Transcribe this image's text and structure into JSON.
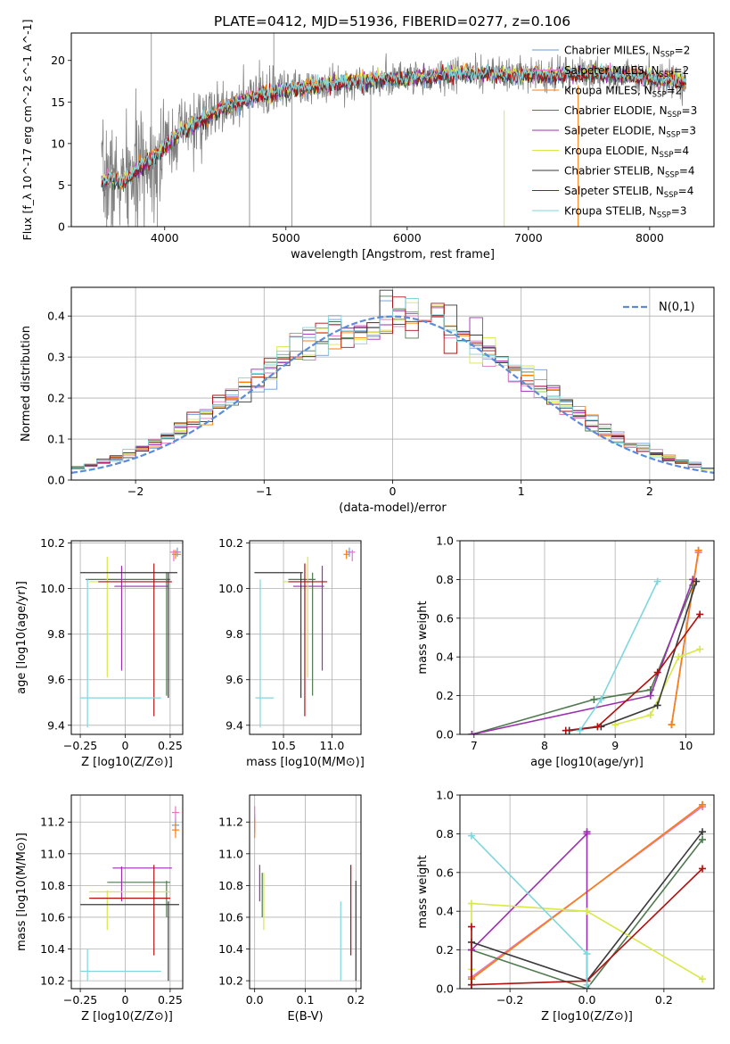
{
  "figure_title": "PLATE=0412, MJD=51936, FIBERID=0277, z=0.106",
  "colors": {
    "Chabrier MILES": "#6a9ad8",
    "Salpeter MILES": "#e377c2",
    "Kroupa MILES": "#ff7f0e",
    "Chabrier ELODIE": "#4f7a4f",
    "Salpeter ELODIE": "#9b2fb0",
    "Kroupa ELODIE": "#d8e84a",
    "Chabrier STELIB": "#3a3a3a",
    "Salpeter STELIB": "#b01010",
    "Kroupa STELIB": "#7fd6dc",
    "data": "#808080",
    "normal": "#5b8bd9"
  },
  "chart_data": [
    {
      "id": "spectrum",
      "type": "line",
      "title": "PLATE=0412, MJD=51936, FIBERID=0277, z=0.106",
      "xlabel": "wavelength [Angstrom, rest frame]",
      "ylabel": "Flux [f_λ 10^-17 erg cm^-2 s^-1 A^-1]",
      "xlim": [
        3230,
        8530
      ],
      "ylim": [
        0,
        23.3
      ],
      "xticks": [
        4000,
        5000,
        6000,
        7000,
        8000
      ],
      "yticks": [
        0,
        5,
        10,
        15,
        20
      ],
      "grid": false,
      "legend": "right",
      "continuum": {
        "x": [
          3480,
          3550,
          3650,
          3750,
          3850,
          3950,
          4050,
          4150,
          4300,
          4450,
          4600,
          4800,
          5000,
          5200,
          5400,
          5600,
          5800,
          6000,
          6200,
          6400,
          6600,
          6800,
          7000,
          7200,
          7400,
          7600,
          7800,
          8000,
          8200,
          8300
        ],
        "y": [
          5.5,
          5.8,
          5.2,
          6.5,
          7.8,
          8.8,
          10.5,
          11.5,
          12.8,
          14.0,
          15.0,
          15.8,
          16.4,
          16.8,
          17.2,
          17.5,
          17.7,
          17.9,
          18.1,
          18.4,
          18.4,
          18.2,
          18.3,
          18.2,
          18.4,
          18.4,
          18.2,
          17.9,
          17.6,
          17.3
        ]
      },
      "series": [
        {
          "name": "Chabrier MILES",
          "nssp": "2"
        },
        {
          "name": "Salpeter MILES",
          "nssp": "2"
        },
        {
          "name": "Kroupa MILES",
          "nssp": "2"
        },
        {
          "name": "Chabrier ELODIE",
          "nssp": "3"
        },
        {
          "name": "Salpeter ELODIE",
          "nssp": "3"
        },
        {
          "name": "Kroupa ELODIE",
          "nssp": "4"
        },
        {
          "name": "Chabrier STELIB",
          "nssp": "4"
        },
        {
          "name": "Salpeter STELIB",
          "nssp": "4"
        },
        {
          "name": "Kroupa STELIB",
          "nssp": "3"
        }
      ]
    },
    {
      "id": "residuals",
      "type": "line",
      "xlabel": "(data-model)/error",
      "ylabel": "Normed distribution",
      "xlim": [
        -2.5,
        2.5
      ],
      "ylim": [
        0,
        0.47
      ],
      "xticks": [
        -2,
        -1,
        0,
        1,
        2
      ],
      "yticks": [
        0.0,
        0.1,
        0.2,
        0.3,
        0.4
      ],
      "grid": true,
      "legend": "top-right",
      "legend_label": "N(0,1)",
      "series_hist": "one normalized histogram per model, same colors as spectrum"
    },
    {
      "id": "age_vs_Z",
      "type": "scatter",
      "xlabel": "Z [log10(Z/Z⊙)]",
      "ylabel": "age [log10(age/yr)]",
      "xlim": [
        -0.3,
        0.32
      ],
      "ylim": [
        9.36,
        10.21
      ],
      "xticks": [
        -0.25,
        0.0,
        0.25
      ],
      "yticks": [
        9.4,
        9.6,
        9.8,
        10.0,
        10.2
      ],
      "grid": true,
      "points": [
        {
          "name": "Chabrier MILES",
          "x": 0.29,
          "y": 10.16,
          "xlo": 0.27,
          "xhi": 0.31,
          "ylo": 10.14,
          "yhi": 10.18
        },
        {
          "name": "Salpeter MILES",
          "x": 0.27,
          "y": 10.16,
          "xlo": 0.25,
          "xhi": 0.3,
          "ylo": 10.12,
          "yhi": 10.17
        },
        {
          "name": "Kroupa MILES",
          "x": 0.28,
          "y": 10.15,
          "xlo": 0.26,
          "xhi": 0.31,
          "ylo": 10.13,
          "yhi": 10.17
        },
        {
          "name": "Chabrier ELODIE",
          "x": 0.23,
          "y": 10.04,
          "xlo": -0.22,
          "xhi": 0.25,
          "ylo": 9.53,
          "yhi": 10.07
        },
        {
          "name": "Salpeter ELODIE",
          "x": -0.02,
          "y": 10.01,
          "xlo": -0.06,
          "xhi": 0.24,
          "ylo": 9.64,
          "yhi": 10.1
        },
        {
          "name": "Kroupa ELODIE",
          "x": -0.1,
          "y": 10.03,
          "xlo": -0.2,
          "xhi": 0.24,
          "ylo": 9.61,
          "yhi": 10.14
        },
        {
          "name": "Chabrier STELIB",
          "x": 0.24,
          "y": 10.07,
          "xlo": -0.25,
          "xhi": 0.29,
          "ylo": 9.52,
          "yhi": 10.07
        },
        {
          "name": "Salpeter STELIB",
          "x": 0.16,
          "y": 10.03,
          "xlo": -0.15,
          "xhi": 0.26,
          "ylo": 9.44,
          "yhi": 10.11
        },
        {
          "name": "Kroupa STELIB",
          "x": -0.21,
          "y": 9.52,
          "xlo": -0.25,
          "xhi": 0.2,
          "ylo": 9.39,
          "yhi": 10.04
        }
      ]
    },
    {
      "id": "age_vs_mass",
      "type": "scatter",
      "xlabel": "mass [log10(M/M⊙)]",
      "ylabel": "",
      "xlim": [
        10.15,
        11.3
      ],
      "ylim": [
        9.36,
        10.21
      ],
      "xticks": [
        10.5,
        11.0
      ],
      "yticks": [
        9.4,
        9.6,
        9.8,
        10.0,
        10.2
      ],
      "grid": true,
      "points": [
        {
          "name": "Chabrier MILES",
          "x": 11.18,
          "y": 10.16,
          "xlo": 11.15,
          "xhi": 11.2,
          "ylo": 10.14,
          "yhi": 10.18
        },
        {
          "name": "Salpeter MILES",
          "x": 11.21,
          "y": 10.16,
          "xlo": 11.18,
          "xhi": 11.24,
          "ylo": 10.12,
          "yhi": 10.17
        },
        {
          "name": "Kroupa MILES",
          "x": 11.15,
          "y": 10.15,
          "xlo": 11.12,
          "xhi": 11.18,
          "ylo": 10.13,
          "yhi": 10.17
        },
        {
          "name": "Chabrier ELODIE",
          "x": 10.8,
          "y": 10.04,
          "xlo": 10.55,
          "xhi": 10.83,
          "ylo": 9.53,
          "yhi": 10.07
        },
        {
          "name": "Salpeter ELODIE",
          "x": 10.9,
          "y": 10.01,
          "xlo": 10.6,
          "xhi": 10.92,
          "ylo": 9.64,
          "yhi": 10.1
        },
        {
          "name": "Kroupa ELODIE",
          "x": 10.75,
          "y": 10.03,
          "xlo": 10.5,
          "xhi": 10.77,
          "ylo": 9.61,
          "yhi": 10.14
        },
        {
          "name": "Chabrier STELIB",
          "x": 10.68,
          "y": 10.07,
          "xlo": 10.2,
          "xhi": 10.7,
          "ylo": 9.52,
          "yhi": 10.07
        },
        {
          "name": "Salpeter STELIB",
          "x": 10.72,
          "y": 10.03,
          "xlo": 10.55,
          "xhi": 10.95,
          "ylo": 9.44,
          "yhi": 10.11
        },
        {
          "name": "Kroupa STELIB",
          "x": 10.26,
          "y": 9.52,
          "xlo": 10.21,
          "xhi": 10.4,
          "ylo": 9.39,
          "yhi": 10.04
        }
      ]
    },
    {
      "id": "massweight_vs_age",
      "type": "line",
      "xlabel": "age [log10(age/yr)]",
      "ylabel": "mass weight",
      "xlim": [
        6.8,
        10.4
      ],
      "ylim": [
        0,
        1.0
      ],
      "xticks": [
        7,
        8,
        9,
        10
      ],
      "yticks": [
        0.0,
        0.2,
        0.4,
        0.6,
        0.8,
        1.0
      ],
      "grid": true,
      "series": [
        {
          "name": "Chabrier MILES",
          "x": [
            9.8,
            10.18
          ],
          "y": [
            0.05,
            0.95
          ]
        },
        {
          "name": "Salpeter MILES",
          "x": [
            9.8,
            10.18
          ],
          "y": [
            0.05,
            0.94
          ]
        },
        {
          "name": "Kroupa MILES",
          "x": [
            9.8,
            10.18
          ],
          "y": [
            0.05,
            0.95
          ]
        },
        {
          "name": "Chabrier ELODIE",
          "x": [
            6.97,
            8.7,
            9.5,
            10.1
          ],
          "y": [
            0.0,
            0.18,
            0.23,
            0.77
          ]
        },
        {
          "name": "Salpeter ELODIE",
          "x": [
            6.97,
            9.5,
            10.1
          ],
          "y": [
            0.0,
            0.2,
            0.8
          ]
        },
        {
          "name": "Kroupa ELODIE",
          "x": [
            9.0,
            9.5,
            9.9,
            10.2
          ],
          "y": [
            0.05,
            0.1,
            0.4,
            0.44
          ]
        },
        {
          "name": "Chabrier STELIB",
          "x": [
            8.35,
            8.8,
            9.6,
            10.15
          ],
          "y": [
            0.02,
            0.04,
            0.15,
            0.79
          ]
        },
        {
          "name": "Salpeter STELIB",
          "x": [
            8.3,
            8.75,
            9.6,
            10.2
          ],
          "y": [
            0.02,
            0.04,
            0.32,
            0.62
          ]
        },
        {
          "name": "Kroupa STELIB",
          "x": [
            8.5,
            8.8,
            9.6
          ],
          "y": [
            0.02,
            0.18,
            0.79
          ]
        }
      ]
    },
    {
      "id": "mass_vs_Z",
      "type": "scatter",
      "xlabel": "Z [log10(Z/Z⊙)]",
      "ylabel": "mass [log10(M/M⊙)]",
      "xlim": [
        -0.3,
        0.32
      ],
      "ylim": [
        10.15,
        11.37
      ],
      "xticks": [
        -0.25,
        0.0,
        0.25
      ],
      "yticks": [
        10.2,
        10.4,
        10.6,
        10.8,
        11.0,
        11.2
      ],
      "grid": true,
      "points": [
        {
          "name": "Chabrier MILES",
          "x": 0.28,
          "y": 11.18,
          "xlo": 0.26,
          "xhi": 0.3,
          "ylo": 11.13,
          "yhi": 11.22
        },
        {
          "name": "Salpeter MILES",
          "x": 0.28,
          "y": 11.26,
          "xlo": 0.26,
          "xhi": 0.3,
          "ylo": 11.21,
          "yhi": 11.3
        },
        {
          "name": "Kroupa MILES",
          "x": 0.28,
          "y": 11.15,
          "xlo": 0.26,
          "xhi": 0.3,
          "ylo": 11.1,
          "yhi": 11.2
        },
        {
          "name": "Chabrier ELODIE",
          "x": 0.23,
          "y": 10.82,
          "xlo": -0.1,
          "xhi": 0.25,
          "ylo": 10.6,
          "yhi": 10.83
        },
        {
          "name": "Salpeter ELODIE",
          "x": -0.02,
          "y": 10.91,
          "xlo": -0.07,
          "xhi": 0.26,
          "ylo": 10.7,
          "yhi": 10.92
        },
        {
          "name": "Kroupa ELODIE",
          "x": -0.1,
          "y": 10.76,
          "xlo": -0.2,
          "xhi": 0.25,
          "ylo": 10.52,
          "yhi": 10.77
        },
        {
          "name": "Chabrier STELIB",
          "x": 0.24,
          "y": 10.68,
          "xlo": -0.25,
          "xhi": 0.3,
          "ylo": 10.2,
          "yhi": 10.7
        },
        {
          "name": "Salpeter STELIB",
          "x": 0.16,
          "y": 10.72,
          "xlo": -0.2,
          "xhi": 0.25,
          "ylo": 10.36,
          "yhi": 10.93
        },
        {
          "name": "Kroupa STELIB",
          "x": -0.21,
          "y": 10.26,
          "xlo": -0.25,
          "xhi": 0.2,
          "ylo": 10.2,
          "yhi": 10.4
        }
      ]
    },
    {
      "id": "mass_vs_EBV",
      "type": "scatter",
      "xlabel": "E(B-V)",
      "ylabel": "",
      "xlim": [
        -0.01,
        0.21
      ],
      "ylim": [
        10.15,
        11.37
      ],
      "xticks": [
        0.0,
        0.1,
        0.2
      ],
      "yticks": [
        10.2,
        10.4,
        10.6,
        10.8,
        11.0,
        11.2
      ],
      "grid": true,
      "points": [
        {
          "name": "Chabrier MILES",
          "x": 0.0,
          "y": 11.18,
          "ylo": 11.13,
          "yhi": 11.25
        },
        {
          "name": "Salpeter MILES",
          "x": 0.0,
          "y": 11.26,
          "ylo": 11.15,
          "yhi": 11.3
        },
        {
          "name": "Kroupa MILES",
          "x": 0.0,
          "y": 11.15,
          "ylo": 11.1,
          "yhi": 11.22
        },
        {
          "name": "Chabrier ELODIE",
          "x": 0.015,
          "y": 10.82,
          "ylo": 10.6,
          "yhi": 10.88
        },
        {
          "name": "Salpeter ELODIE",
          "x": 0.01,
          "y": 10.91,
          "ylo": 10.7,
          "yhi": 10.93
        },
        {
          "name": "Kroupa ELODIE",
          "x": 0.018,
          "y": 10.76,
          "ylo": 10.52,
          "yhi": 10.88
        },
        {
          "name": "Chabrier STELIB",
          "x": 0.2,
          "y": 10.68,
          "ylo": 10.2,
          "yhi": 10.83
        },
        {
          "name": "Salpeter STELIB",
          "x": 0.19,
          "y": 10.72,
          "ylo": 10.36,
          "yhi": 10.93
        },
        {
          "name": "Kroupa STELIB",
          "x": 0.17,
          "y": 10.26,
          "ylo": 10.2,
          "yhi": 10.7
        }
      ]
    },
    {
      "id": "massweight_vs_Z",
      "type": "line",
      "xlabel": "Z [log10(Z/Z⊙)]",
      "ylabel": "mass weight",
      "xlim": [
        -0.33,
        0.33
      ],
      "ylim": [
        0,
        1.0
      ],
      "xticks": [
        -0.2,
        0.0,
        0.2
      ],
      "yticks": [
        0.0,
        0.2,
        0.4,
        0.6,
        0.8,
        1.0
      ],
      "grid": true,
      "series": [
        {
          "name": "Chabrier MILES",
          "x": [
            -0.3,
            0.3
          ],
          "y": [
            0.05,
            0.95
          ]
        },
        {
          "name": "Salpeter MILES",
          "x": [
            -0.3,
            0.3
          ],
          "y": [
            0.06,
            0.94
          ]
        },
        {
          "name": "Kroupa MILES",
          "x": [
            -0.3,
            0.3
          ],
          "y": [
            0.05,
            0.95
          ]
        },
        {
          "name": "Chabrier ELODIE",
          "x": [
            -0.3,
            0.0,
            0.3
          ],
          "y": [
            0.2,
            0.0,
            0.77
          ]
        },
        {
          "name": "Salpeter ELODIE",
          "x": [
            -0.3,
            0.0,
            0.0,
            0.0
          ],
          "y": [
            0.2,
            0.8,
            0.81,
            0.0
          ]
        },
        {
          "name": "Kroupa ELODIE",
          "x": [
            -0.3,
            -0.3,
            0.0,
            0.3
          ],
          "y": [
            0.1,
            0.44,
            0.4,
            0.05
          ]
        },
        {
          "name": "Chabrier STELIB",
          "x": [
            -0.3,
            -0.3,
            0.0,
            0.3
          ],
          "y": [
            0.02,
            0.24,
            0.04,
            0.81
          ]
        },
        {
          "name": "Salpeter STELIB",
          "x": [
            -0.3,
            -0.3,
            0.0,
            0.3
          ],
          "y": [
            0.32,
            0.02,
            0.04,
            0.62
          ]
        },
        {
          "name": "Kroupa STELIB",
          "x": [
            -0.3,
            0.0,
            0.0
          ],
          "y": [
            0.79,
            0.18,
            0.02
          ]
        }
      ]
    }
  ]
}
